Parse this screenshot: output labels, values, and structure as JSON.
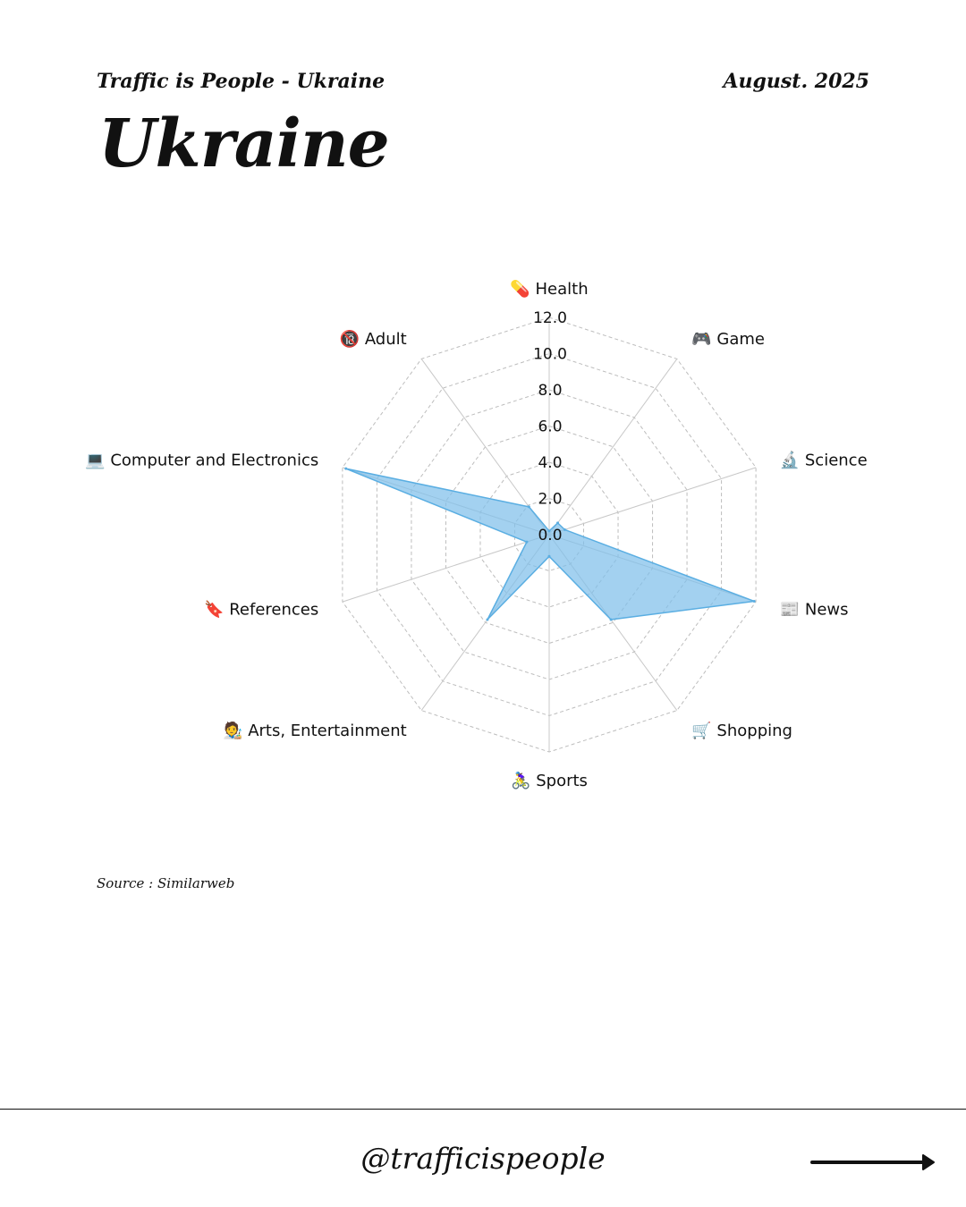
{
  "header": {
    "series_name": "Traffic is People - Ukraine",
    "date": "August. 2025"
  },
  "title": "Ukraine",
  "source": "Source : Similarweb",
  "footer": {
    "handle": "@trafficispeople",
    "next_icon": "arrow-right-icon"
  },
  "colors": {
    "fill": "#7fbfea",
    "stroke": "#5aaee2",
    "grid": "#bdbdbd",
    "spoke": "#c8c8c8"
  },
  "chart_data": {
    "type": "radar",
    "categories": [
      {
        "icon": "💊",
        "label": "Health"
      },
      {
        "icon": "🎮",
        "label": "Game"
      },
      {
        "icon": "🔬",
        "label": "Science"
      },
      {
        "icon": "📰",
        "label": "News"
      },
      {
        "icon": "🛒",
        "label": "Shopping"
      },
      {
        "icon": "🚴‍♀️",
        "label": "Sports"
      },
      {
        "icon": "🧑‍🎨",
        "label": "Arts, Entertainment"
      },
      {
        "icon": "🔖",
        "label": "References"
      },
      {
        "icon": "💻",
        "label": "Computer and Electronics"
      },
      {
        "icon": "🔞",
        "label": "Adult"
      }
    ],
    "values": [
      0.2,
      0.8,
      0.9,
      11.9,
      5.8,
      1.2,
      5.8,
      1.3,
      11.8,
      1.9
    ],
    "r_ticks": [
      "0.0",
      "2.0",
      "4.0",
      "6.0",
      "8.0",
      "10.0",
      "12.0"
    ],
    "r_range": [
      0,
      12
    ],
    "grid": "dashed polygon"
  }
}
